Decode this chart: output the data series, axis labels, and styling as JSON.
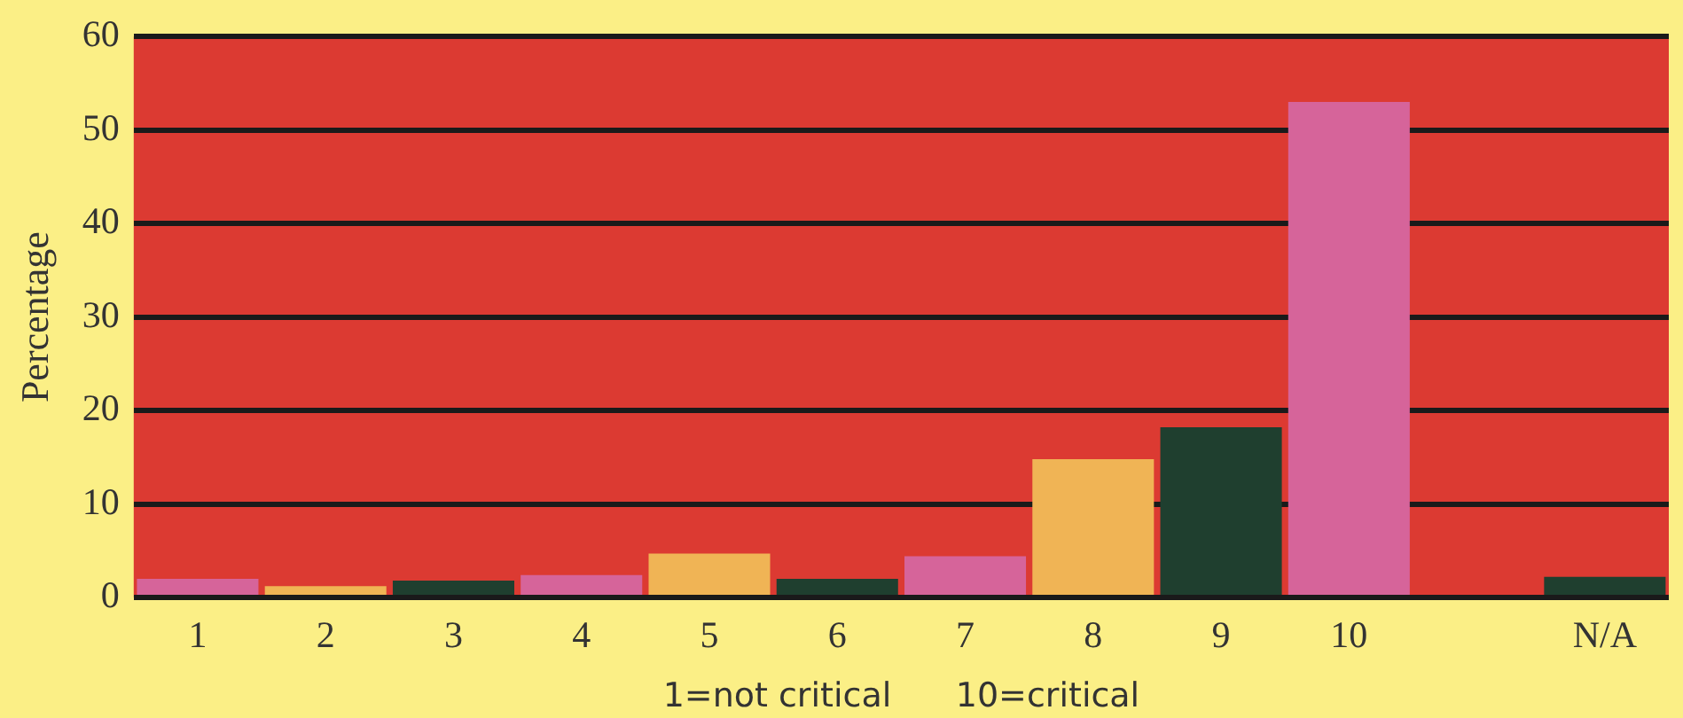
{
  "chart_data": {
    "type": "bar",
    "xlabel": "1=not critical      10=critical",
    "ylabel": "Percentage",
    "categories": [
      "1",
      "2",
      "3",
      "4",
      "5",
      "6",
      "7",
      "8",
      "9",
      "10",
      null,
      "N/A"
    ],
    "values": [
      2.0,
      1.2,
      1.8,
      2.4,
      4.7,
      2.0,
      4.4,
      14.8,
      18.2,
      53,
      null,
      2.2
    ],
    "colors": [
      "#d6649a",
      "#f0b455",
      "#1f3f2f",
      "#d6649a",
      "#f0b455",
      "#1f3f2f",
      "#d6649a",
      "#f0b455",
      "#1f3f2f",
      "#d6649a",
      "#d6649a",
      "#1f3f2f"
    ],
    "ylim": [
      0,
      60
    ],
    "yticks": [
      0,
      10,
      20,
      30,
      40,
      50,
      60
    ],
    "grid": "y",
    "legend": false
  }
}
